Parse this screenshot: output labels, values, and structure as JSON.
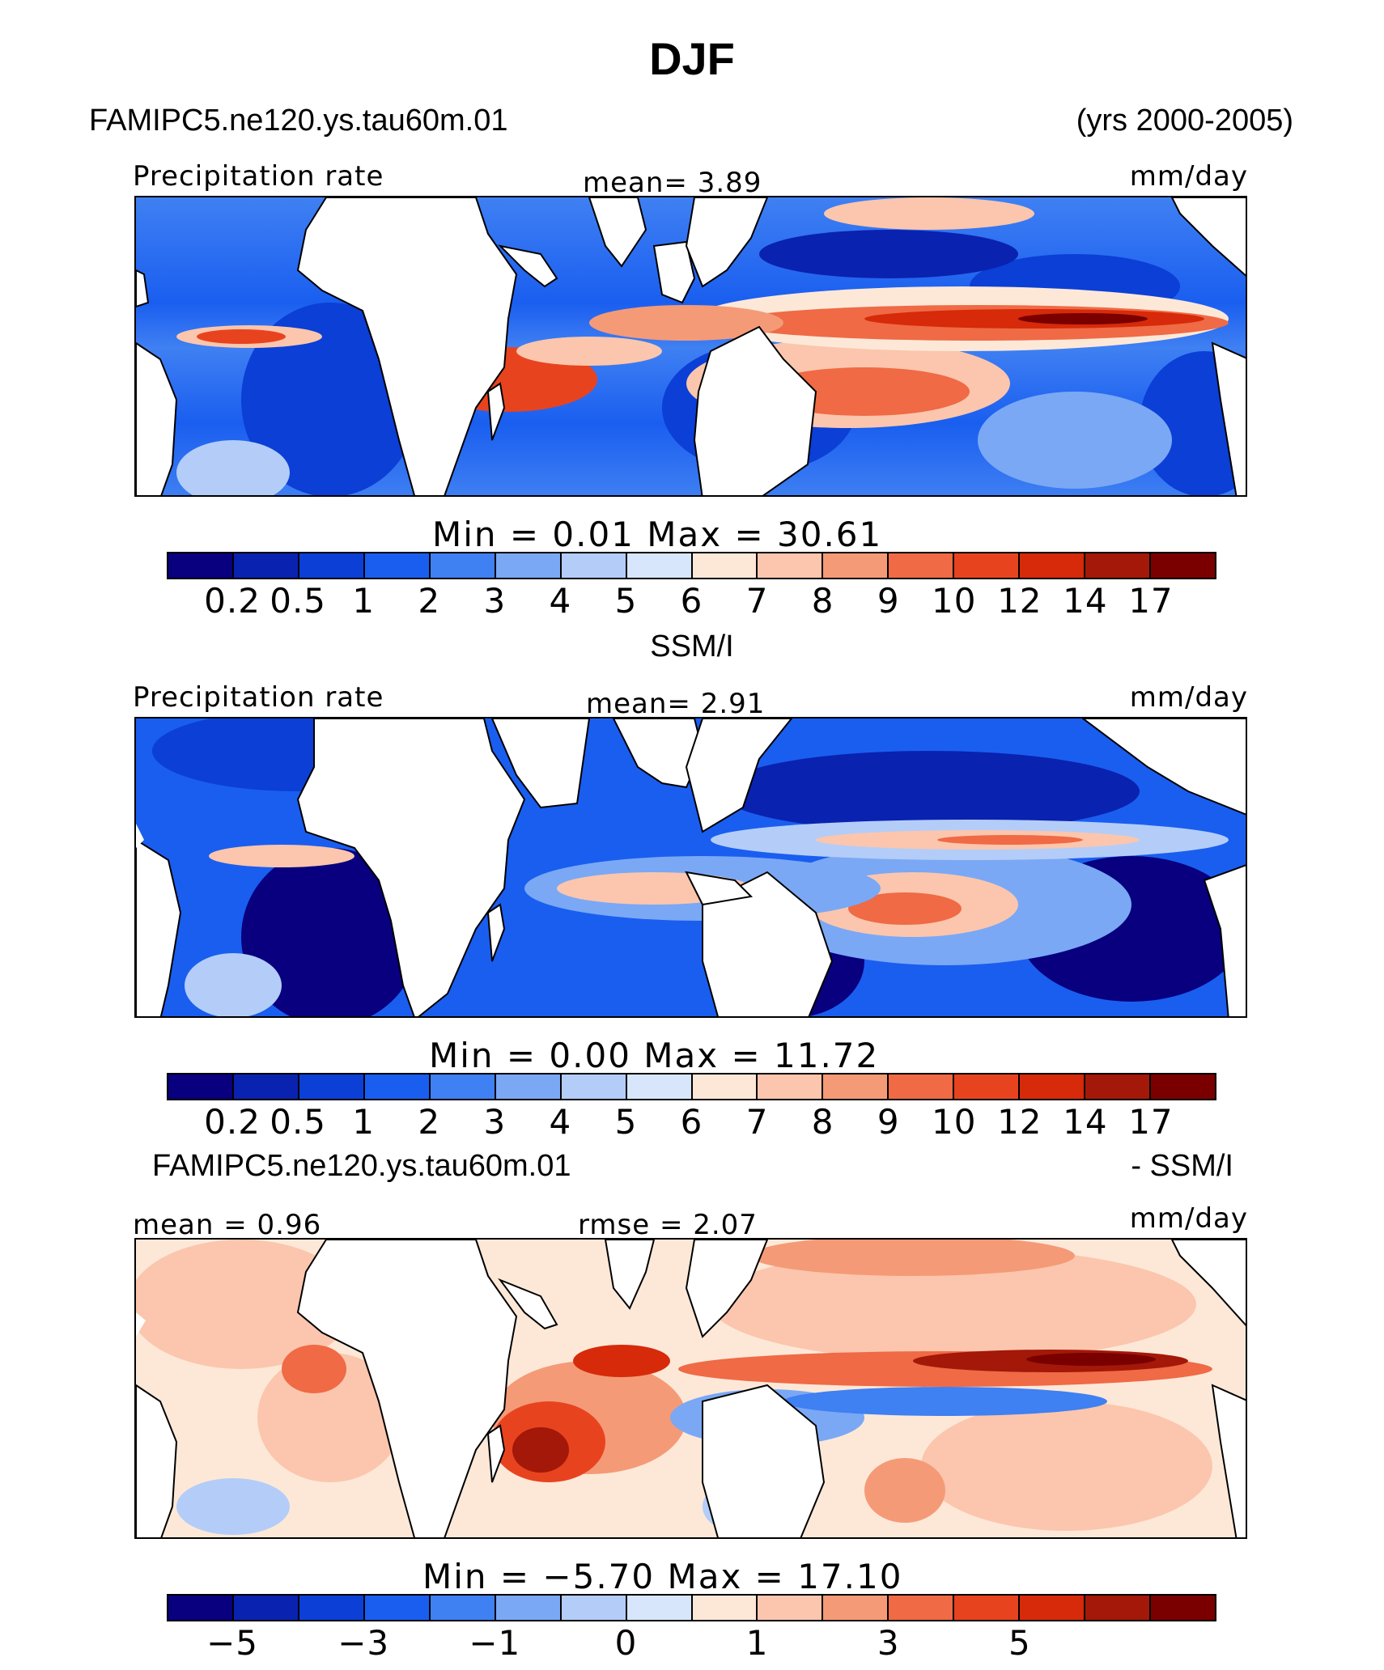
{
  "title": "DJF",
  "header": {
    "case": "FAMIPC5.ne120.ys.tau60m.01",
    "years": "(yrs 2000-2005)"
  },
  "colors": {
    "precip": [
      "#08007f",
      "#0a22b0",
      "#0b3fd6",
      "#1a5ef0",
      "#3f80f2",
      "#7aa8f5",
      "#b3cdf8",
      "#d7e6fb",
      "#fde8d8",
      "#fbc6ad",
      "#f59a77",
      "#ef6a45",
      "#e8431f",
      "#d62a0a",
      "#a31808",
      "#7a0000"
    ]
  },
  "panels": [
    {
      "left_label": "Precipitation rate",
      "center_label": "mean=   3.89",
      "units": "mm/day",
      "minmax": "Min  =    0.01  Max  =   30.61",
      "ticks": [
        "0.2",
        "0.5",
        "1",
        "2",
        "3",
        "4",
        "5",
        "6",
        "7",
        "8",
        "9",
        "10",
        "12",
        "14",
        "17"
      ]
    },
    {
      "caption": "SSM/I",
      "left_label": "Precipitation rate",
      "center_label": "mean=   2.91",
      "units": "mm/day",
      "minmax": "Min  =    0.00  Max  =   11.72",
      "ticks": [
        "0.2",
        "0.5",
        "1",
        "2",
        "3",
        "4",
        "5",
        "6",
        "7",
        "8",
        "9",
        "10",
        "12",
        "14",
        "17"
      ]
    },
    {
      "caption_left": "FAMIPC5.ne120.ys.tau60m.01",
      "caption_right": "- SSM/I",
      "left_label": "mean =   0.96",
      "center_label": "rmse  =   2.07",
      "units": "mm/day",
      "minmax": "Min  =   −5.70  Max  =   17.10",
      "ticks": [
        "−5",
        "−3",
        "−1",
        "0",
        "1",
        "3",
        "5"
      ]
    }
  ]
}
